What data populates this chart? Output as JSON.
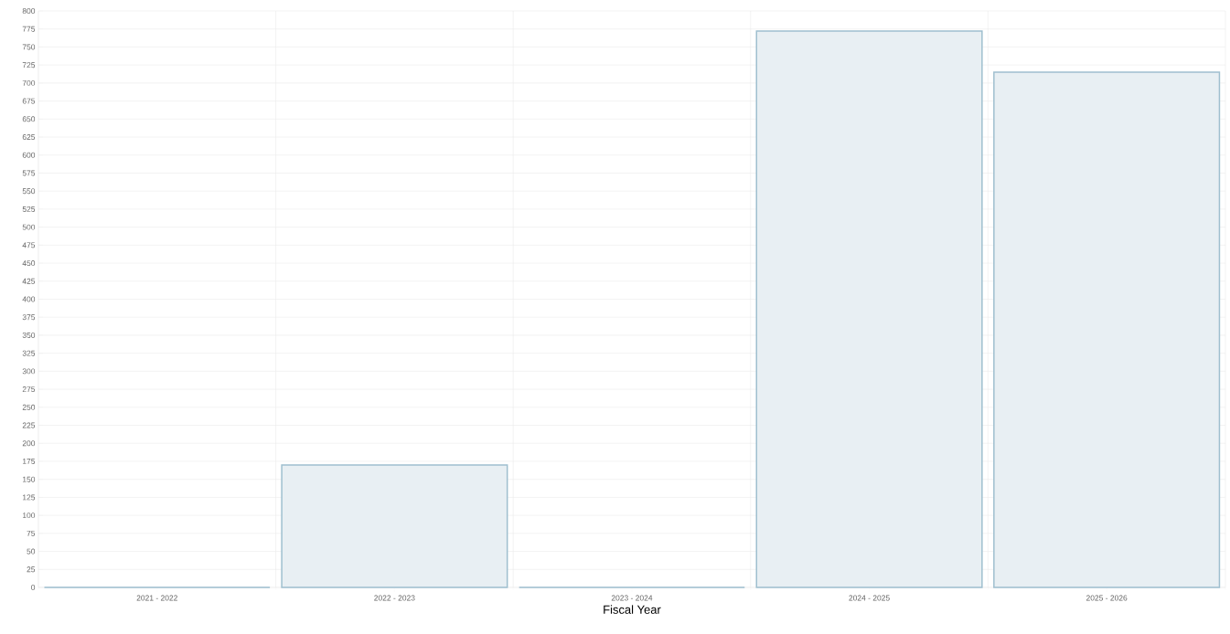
{
  "chart_data": {
    "type": "bar",
    "xlabel": "Fiscal Year",
    "categories": [
      "2021 - 2022",
      "2022 - 2023",
      "2023 - 2024",
      "2024 - 2025",
      "2025 - 2026"
    ],
    "values": [
      0,
      170,
      0,
      772,
      715
    ],
    "colors": [
      "#9fbfcf",
      "#e8eff3",
      "#9fbfcf",
      "#e8eff3",
      "#e8eff3"
    ],
    "ylim": [
      0,
      800
    ],
    "yticks": [
      0,
      25,
      50,
      75,
      100,
      125,
      150,
      175,
      200,
      225,
      250,
      275,
      300,
      325,
      350,
      375,
      400,
      425,
      450,
      475,
      500,
      525,
      550,
      575,
      600,
      625,
      650,
      675,
      700,
      725,
      750,
      775,
      800
    ],
    "grid": true
  }
}
